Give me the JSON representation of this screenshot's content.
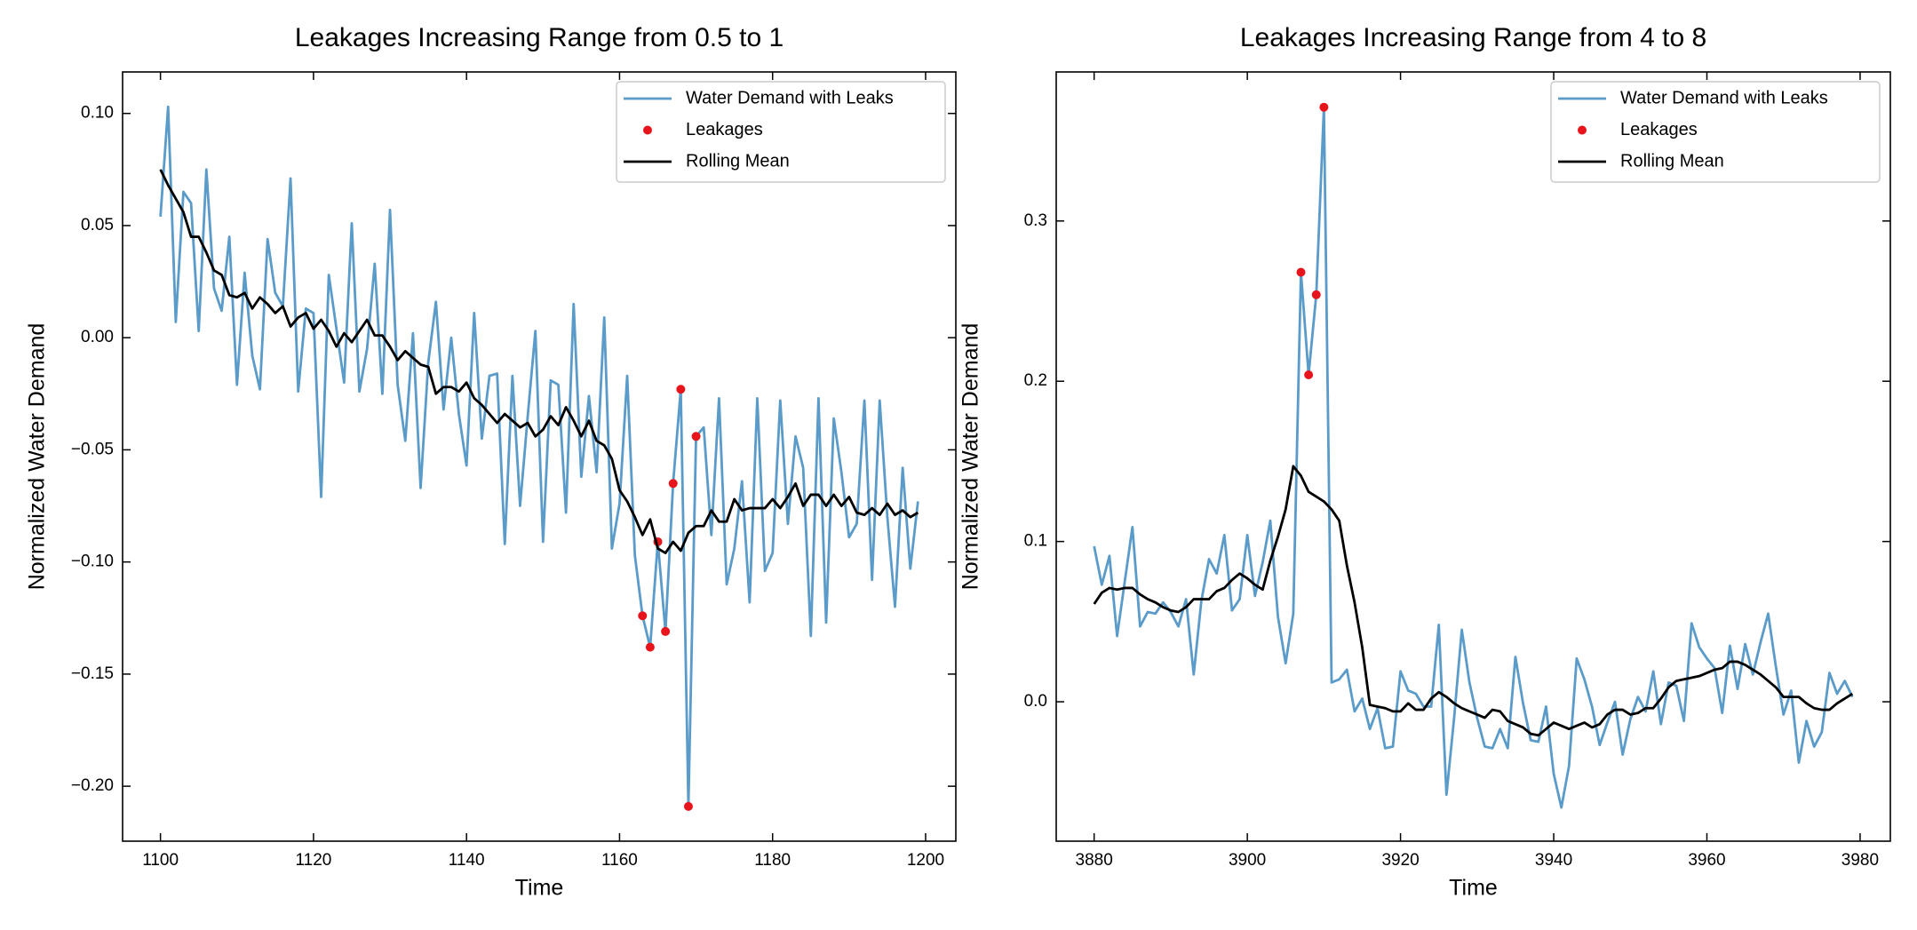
{
  "chart_data": [
    {
      "type": "line",
      "title": "Leakages Increasing Range from 0.5 to 1",
      "xlabel": "Time",
      "ylabel": "Normalized Water Demand",
      "x": [
        1100,
        1101,
        1102,
        1103,
        1104,
        1105,
        1106,
        1107,
        1108,
        1109,
        1110,
        1111,
        1112,
        1113,
        1114,
        1115,
        1116,
        1117,
        1118,
        1119,
        1120,
        1121,
        1122,
        1123,
        1124,
        1125,
        1126,
        1127,
        1128,
        1129,
        1130,
        1131,
        1132,
        1133,
        1134,
        1135,
        1136,
        1137,
        1138,
        1139,
        1140,
        1141,
        1142,
        1143,
        1144,
        1145,
        1146,
        1147,
        1148,
        1149,
        1150,
        1151,
        1152,
        1153,
        1154,
        1155,
        1156,
        1157,
        1158,
        1159,
        1160,
        1161,
        1162,
        1163,
        1164,
        1165,
        1166,
        1167,
        1168,
        1169,
        1170,
        1171,
        1172,
        1173,
        1174,
        1175,
        1176,
        1177,
        1178,
        1179,
        1180,
        1181,
        1182,
        1183,
        1184,
        1185,
        1186,
        1187,
        1188,
        1189,
        1190,
        1191,
        1192,
        1193,
        1194,
        1195,
        1196,
        1197,
        1198,
        1199
      ],
      "series": [
        {
          "name": "Water Demand with Leaks",
          "color": "#5a9bc9",
          "values": [
            0.054,
            0.103,
            0.007,
            0.065,
            0.06,
            0.003,
            0.075,
            0.022,
            0.012,
            0.045,
            -0.021,
            0.029,
            -0.008,
            -0.023,
            0.044,
            0.02,
            0.014,
            0.071,
            -0.024,
            0.013,
            0.011,
            -0.071,
            0.028,
            0.004,
            -0.02,
            0.051,
            -0.024,
            -0.005,
            0.033,
            -0.025,
            0.057,
            -0.021,
            -0.046,
            0.002,
            -0.067,
            -0.011,
            0.016,
            -0.032,
            0.0,
            -0.034,
            -0.057,
            0.011,
            -0.045,
            -0.017,
            -0.016,
            -0.092,
            -0.017,
            -0.075,
            -0.035,
            0.003,
            -0.091,
            -0.019,
            -0.021,
            -0.078,
            0.015,
            -0.062,
            -0.026,
            -0.06,
            0.009,
            -0.094,
            -0.074,
            -0.017,
            -0.097,
            -0.124,
            -0.138,
            -0.091,
            -0.131,
            -0.065,
            -0.023,
            -0.209,
            -0.044,
            -0.04,
            -0.088,
            -0.027,
            -0.11,
            -0.094,
            -0.064,
            -0.118,
            -0.027,
            -0.104,
            -0.096,
            -0.028,
            -0.083,
            -0.044,
            -0.058,
            -0.133,
            -0.027,
            -0.127,
            -0.036,
            -0.06,
            -0.089,
            -0.083,
            -0.028,
            -0.108,
            -0.028,
            -0.08,
            -0.12,
            -0.058,
            -0.103,
            -0.073
          ]
        },
        {
          "name": "Leakages",
          "color": "#e8141c",
          "type": "scatter",
          "x": [
            1163,
            1164,
            1165,
            1166,
            1167,
            1168,
            1169,
            1170
          ],
          "values": [
            -0.124,
            -0.138,
            -0.091,
            -0.131,
            -0.065,
            -0.023,
            -0.209,
            -0.044
          ]
        },
        {
          "name": "Rolling Mean",
          "color": "#000000",
          "values": [
            0.075,
            0.068,
            0.062,
            0.056,
            0.045,
            0.045,
            0.038,
            0.03,
            0.028,
            0.019,
            0.018,
            0.02,
            0.013,
            0.018,
            0.015,
            0.011,
            0.014,
            0.005,
            0.009,
            0.011,
            0.004,
            0.008,
            0.003,
            -0.004,
            0.002,
            -0.002,
            0.003,
            0.008,
            0.001,
            0.001,
            -0.004,
            -0.01,
            -0.006,
            -0.009,
            -0.012,
            -0.013,
            -0.025,
            -0.022,
            -0.022,
            -0.024,
            -0.02,
            -0.027,
            -0.03,
            -0.034,
            -0.038,
            -0.034,
            -0.037,
            -0.04,
            -0.038,
            -0.044,
            -0.041,
            -0.035,
            -0.039,
            -0.031,
            -0.037,
            -0.044,
            -0.037,
            -0.046,
            -0.048,
            -0.054,
            -0.068,
            -0.073,
            -0.08,
            -0.088,
            -0.081,
            -0.094,
            -0.096,
            -0.091,
            -0.095,
            -0.087,
            -0.084,
            -0.084,
            -0.077,
            -0.082,
            -0.082,
            -0.072,
            -0.077,
            -0.076,
            -0.076,
            -0.076,
            -0.072,
            -0.076,
            -0.071,
            -0.065,
            -0.075,
            -0.07,
            -0.07,
            -0.075,
            -0.07,
            -0.075,
            -0.071,
            -0.078,
            -0.079,
            -0.076,
            -0.079,
            -0.074,
            -0.079,
            -0.077,
            -0.08,
            -0.078
          ]
        }
      ],
      "xlim": [
        1095.05,
        1203.95
      ],
      "xticks": [
        1100,
        1120,
        1140,
        1160,
        1180,
        1200
      ],
      "ylim": [
        -0.2245,
        0.1185
      ],
      "yticks": [
        {
          "value": -0.2,
          "label": "−0.20"
        },
        {
          "value": -0.15,
          "label": "−0.15"
        },
        {
          "value": -0.1,
          "label": "−0.10"
        },
        {
          "value": -0.05,
          "label": "−0.05"
        },
        {
          "value": 0,
          "label": "0.00"
        },
        0.05,
        {
          "value": 0.1,
          "label": "0.10"
        }
      ],
      "legend": "upper right",
      "grid": false
    },
    {
      "type": "line",
      "title": "Leakages Increasing Range from 4 to 8",
      "xlabel": "Time",
      "ylabel": "Normalized Water Demand",
      "x": [
        3880,
        3881,
        3882,
        3883,
        3884,
        3885,
        3886,
        3887,
        3888,
        3889,
        3890,
        3891,
        3892,
        3893,
        3894,
        3895,
        3896,
        3897,
        3898,
        3899,
        3900,
        3901,
        3902,
        3903,
        3904,
        3905,
        3906,
        3907,
        3908,
        3909,
        3910,
        3911,
        3912,
        3913,
        3914,
        3915,
        3916,
        3917,
        3918,
        3919,
        3920,
        3921,
        3922,
        3923,
        3924,
        3925,
        3926,
        3927,
        3928,
        3929,
        3930,
        3931,
        3932,
        3933,
        3934,
        3935,
        3936,
        3937,
        3938,
        3939,
        3940,
        3941,
        3942,
        3943,
        3944,
        3945,
        3946,
        3947,
        3948,
        3949,
        3950,
        3951,
        3952,
        3953,
        3954,
        3955,
        3956,
        3957,
        3958,
        3959,
        3960,
        3961,
        3962,
        3963,
        3964,
        3965,
        3966,
        3967,
        3968,
        3969,
        3970,
        3971,
        3972,
        3973,
        3974,
        3975,
        3976,
        3977,
        3978,
        3979
      ],
      "series": [
        {
          "name": "Water Demand with Leaks",
          "color": "#5a9bc9",
          "values": [
            0.097,
            0.073,
            0.091,
            0.041,
            0.075,
            0.109,
            0.047,
            0.056,
            0.055,
            0.062,
            0.056,
            0.047,
            0.064,
            0.017,
            0.063,
            0.089,
            0.08,
            0.104,
            0.057,
            0.064,
            0.104,
            0.066,
            0.087,
            0.113,
            0.053,
            0.024,
            0.055,
            0.268,
            0.204,
            0.254,
            0.371,
            0.012,
            0.014,
            0.02,
            -0.006,
            0.002,
            -0.017,
            -0.004,
            -0.029,
            -0.028,
            0.019,
            0.007,
            0.005,
            -0.003,
            -0.003,
            0.048,
            -0.058,
            -0.01,
            0.045,
            0.012,
            -0.01,
            -0.028,
            -0.029,
            -0.017,
            -0.029,
            0.028,
            -0.001,
            -0.024,
            -0.025,
            -0.003,
            -0.045,
            -0.066,
            -0.04,
            0.027,
            0.014,
            -0.003,
            -0.027,
            -0.013,
            0.0,
            -0.033,
            -0.011,
            0.003,
            -0.006,
            0.019,
            -0.014,
            0.012,
            0.01,
            -0.012,
            0.049,
            0.034,
            0.027,
            0.021,
            -0.007,
            0.035,
            0.008,
            0.036,
            0.017,
            0.037,
            0.055,
            0.022,
            -0.008,
            0.007,
            -0.038,
            -0.012,
            -0.028,
            -0.019,
            0.018,
            0.005,
            0.013,
            0.003
          ]
        },
        {
          "name": "Leakages",
          "color": "#e8141c",
          "type": "scatter",
          "x": [
            3907,
            3908,
            3909,
            3910
          ],
          "values": [
            0.268,
            0.204,
            0.254,
            0.371
          ]
        },
        {
          "name": "Rolling Mean",
          "color": "#000000",
          "values": [
            0.061,
            0.068,
            0.071,
            0.07,
            0.071,
            0.071,
            0.067,
            0.064,
            0.062,
            0.059,
            0.057,
            0.056,
            0.059,
            0.064,
            0.064,
            0.064,
            0.069,
            0.071,
            0.076,
            0.08,
            0.077,
            0.073,
            0.07,
            0.088,
            0.103,
            0.12,
            0.147,
            0.141,
            0.131,
            0.128,
            0.125,
            0.12,
            0.113,
            0.085,
            0.062,
            0.034,
            -0.002,
            -0.003,
            -0.004,
            -0.006,
            -0.006,
            -0.001,
            -0.005,
            -0.005,
            0.002,
            0.006,
            0.003,
            -0.001,
            -0.004,
            -0.006,
            -0.008,
            -0.01,
            -0.005,
            -0.006,
            -0.012,
            -0.014,
            -0.016,
            -0.02,
            -0.021,
            -0.017,
            -0.013,
            -0.015,
            -0.017,
            -0.015,
            -0.013,
            -0.016,
            -0.014,
            -0.008,
            -0.005,
            -0.005,
            -0.008,
            -0.007,
            -0.004,
            -0.004,
            0.002,
            0.009,
            0.013,
            0.014,
            0.015,
            0.016,
            0.018,
            0.02,
            0.021,
            0.025,
            0.025,
            0.023,
            0.02,
            0.017,
            0.013,
            0.009,
            0.003,
            0.003,
            0.003,
            -0.001,
            -0.004,
            -0.005,
            -0.005,
            -0.001,
            0.002,
            0.005
          ]
        }
      ],
      "xlim": [
        3875.05,
        3983.95
      ],
      "xticks": [
        3880,
        3900,
        3920,
        3940,
        3960,
        3980
      ],
      "ylim": [
        -0.087,
        0.393
      ],
      "yticks": [
        {
          "value": 0,
          "label": "0.0"
        },
        0.1,
        0.2,
        0.3
      ],
      "legend": "upper right",
      "grid": false
    }
  ]
}
